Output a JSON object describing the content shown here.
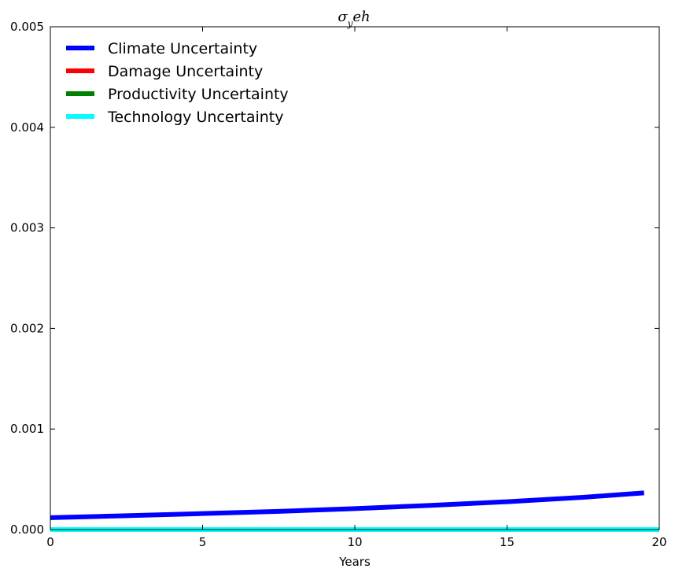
{
  "chart_data": {
    "type": "line",
    "title": "σyeh",
    "title_main": "σ",
    "title_sub": "y",
    "title_rest": "eh",
    "xlabel": "Years",
    "ylabel": "",
    "xlim": [
      0,
      20
    ],
    "ylim": [
      0,
      0.005
    ],
    "xticks": [
      "0",
      "5",
      "10",
      "15",
      "20"
    ],
    "yticks": [
      "0.000",
      "0.001",
      "0.002",
      "0.003",
      "0.004",
      "0.005"
    ],
    "grid": false,
    "legend_position": "top-left",
    "series": [
      {
        "name": "Climate Uncertainty",
        "color": "#0000ff",
        "x": [
          0,
          2.5,
          5,
          7.5,
          10,
          12.5,
          15,
          17.5,
          19.5
        ],
        "y": [
          0.000118,
          0.000138,
          0.000159,
          0.000181,
          0.000208,
          0.000241,
          0.000277,
          0.000321,
          0.000365
        ]
      },
      {
        "name": "Damage Uncertainty",
        "color": "#ff0000",
        "x": [
          0,
          5,
          10,
          15,
          20
        ],
        "y": [
          0,
          0,
          0,
          0,
          0
        ]
      },
      {
        "name": "Productivity Uncertainty",
        "color": "#008000",
        "x": [
          0,
          5,
          10,
          15,
          20
        ],
        "y": [
          0,
          0,
          0,
          0,
          0
        ]
      },
      {
        "name": "Technology Uncertainty",
        "color": "#00ffff",
        "x": [
          0,
          5,
          10,
          15,
          20
        ],
        "y": [
          0,
          0,
          0,
          0,
          0
        ]
      }
    ]
  }
}
